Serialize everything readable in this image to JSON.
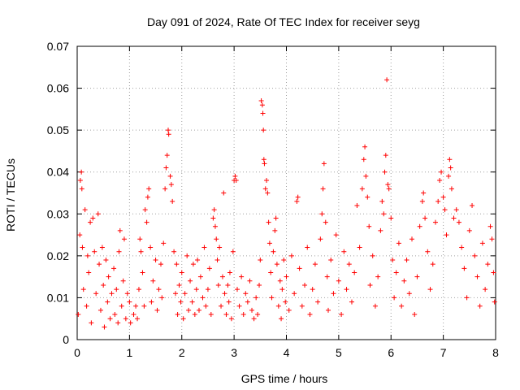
{
  "chart_data": {
    "type": "scatter",
    "title": "Day 091 of 2024, Rate Of TEC Index for receiver seyg",
    "xlabel": "GPS time / hours",
    "ylabel": "ROTI / TECUs",
    "xlim": [
      0,
      8
    ],
    "ylim": [
      0,
      0.07
    ],
    "xticks": [
      0,
      1,
      2,
      3,
      4,
      5,
      6,
      7,
      8
    ],
    "xtick_labels": [
      "0",
      "1",
      "2",
      "3",
      "4",
      "5",
      "6",
      "7",
      "8"
    ],
    "yticks": [
      0,
      0.01,
      0.02,
      0.03,
      0.04,
      0.05,
      0.06,
      0.07
    ],
    "ytick_labels": [
      "0",
      "0.01",
      "0.02",
      "0.03",
      "0.04",
      "0.05",
      "0.06",
      "0.07"
    ],
    "grid": true,
    "marker": "+",
    "color": "#ff0000",
    "series": [
      {
        "name": "ROTI",
        "points": [
          [
            0.02,
            0.006
          ],
          [
            0.05,
            0.025
          ],
          [
            0.06,
            0.038
          ],
          [
            0.08,
            0.04
          ],
          [
            0.09,
            0.036
          ],
          [
            0.1,
            0.022
          ],
          [
            0.12,
            0.012
          ],
          [
            0.15,
            0.031
          ],
          [
            0.18,
            0.008
          ],
          [
            0.2,
            0.02
          ],
          [
            0.22,
            0.016
          ],
          [
            0.25,
            0.028
          ],
          [
            0.27,
            0.004
          ],
          [
            0.3,
            0.029
          ],
          [
            0.33,
            0.021
          ],
          [
            0.36,
            0.011
          ],
          [
            0.4,
            0.03
          ],
          [
            0.42,
            0.018
          ],
          [
            0.45,
            0.007
          ],
          [
            0.48,
            0.022
          ],
          [
            0.5,
            0.013
          ],
          [
            0.52,
            0.003
          ],
          [
            0.55,
            0.019
          ],
          [
            0.58,
            0.009
          ],
          [
            0.6,
            0.015
          ],
          [
            0.63,
            0.005
          ],
          [
            0.66,
            0.011
          ],
          [
            0.7,
            0.017
          ],
          [
            0.72,
            0.006
          ],
          [
            0.75,
            0.012
          ],
          [
            0.78,
            0.004
          ],
          [
            0.8,
            0.021
          ],
          [
            0.82,
            0.026
          ],
          [
            0.85,
            0.008
          ],
          [
            0.88,
            0.014
          ],
          [
            0.9,
            0.024
          ],
          [
            0.93,
            0.005
          ],
          [
            0.96,
            0.011
          ],
          [
            1.0,
            0.009
          ],
          [
            1.02,
            0.004
          ],
          [
            1.08,
            0.006
          ],
          [
            1.12,
            0.008
          ],
          [
            1.15,
            0.005
          ],
          [
            1.18,
            0.012
          ],
          [
            1.2,
            0.024
          ],
          [
            1.22,
            0.021
          ],
          [
            1.25,
            0.016
          ],
          [
            1.28,
            0.008
          ],
          [
            1.3,
            0.031
          ],
          [
            1.33,
            0.028
          ],
          [
            1.35,
            0.034
          ],
          [
            1.37,
            0.036
          ],
          [
            1.4,
            0.022
          ],
          [
            1.42,
            0.009
          ],
          [
            1.45,
            0.014
          ],
          [
            1.5,
            0.019
          ],
          [
            1.53,
            0.007
          ],
          [
            1.56,
            0.012
          ],
          [
            1.6,
            0.018
          ],
          [
            1.62,
            0.01
          ],
          [
            1.65,
            0.023
          ],
          [
            1.68,
            0.036
          ],
          [
            1.7,
            0.041
          ],
          [
            1.72,
            0.044
          ],
          [
            1.74,
            0.05
          ],
          [
            1.75,
            0.049
          ],
          [
            1.78,
            0.039
          ],
          [
            1.8,
            0.037
          ],
          [
            1.82,
            0.033
          ],
          [
            1.85,
            0.021
          ],
          [
            1.88,
            0.011
          ],
          [
            1.9,
            0.018
          ],
          [
            1.92,
            0.006
          ],
          [
            1.95,
            0.013
          ],
          [
            1.98,
            0.009
          ],
          [
            2.0,
            0.016
          ],
          [
            2.03,
            0.005
          ],
          [
            2.06,
            0.011
          ],
          [
            2.1,
            0.02
          ],
          [
            2.13,
            0.007
          ],
          [
            2.16,
            0.014
          ],
          [
            2.2,
            0.009
          ],
          [
            2.22,
            0.018
          ],
          [
            2.25,
            0.006
          ],
          [
            2.28,
            0.012
          ],
          [
            2.3,
            0.019
          ],
          [
            2.33,
            0.007
          ],
          [
            2.36,
            0.015
          ],
          [
            2.4,
            0.01
          ],
          [
            2.43,
            0.022
          ],
          [
            2.46,
            0.008
          ],
          [
            2.5,
            0.012
          ],
          [
            2.53,
            0.017
          ],
          [
            2.56,
            0.006
          ],
          [
            2.6,
            0.029
          ],
          [
            2.62,
            0.031
          ],
          [
            2.64,
            0.027
          ],
          [
            2.66,
            0.024
          ],
          [
            2.68,
            0.019
          ],
          [
            2.7,
            0.013
          ],
          [
            2.72,
            0.022
          ],
          [
            2.75,
            0.008
          ],
          [
            2.78,
            0.015
          ],
          [
            2.8,
            0.035
          ],
          [
            2.82,
            0.011
          ],
          [
            2.85,
            0.006
          ],
          [
            2.88,
            0.013
          ],
          [
            2.9,
            0.009
          ],
          [
            2.92,
            0.016
          ],
          [
            2.95,
            0.005
          ],
          [
            2.98,
            0.021
          ],
          [
            3.0,
            0.038
          ],
          [
            3.02,
            0.039
          ],
          [
            3.04,
            0.038
          ],
          [
            3.06,
            0.012
          ],
          [
            3.1,
            0.008
          ],
          [
            3.14,
            0.015
          ],
          [
            3.18,
            0.006
          ],
          [
            3.22,
            0.011
          ],
          [
            3.26,
            0.009
          ],
          [
            3.3,
            0.014
          ],
          [
            3.34,
            0.007
          ],
          [
            3.38,
            0.005
          ],
          [
            3.42,
            0.01
          ],
          [
            3.45,
            0.006
          ],
          [
            3.48,
            0.013
          ],
          [
            3.5,
            0.019
          ],
          [
            3.52,
            0.057
          ],
          [
            3.54,
            0.056
          ],
          [
            3.55,
            0.054
          ],
          [
            3.56,
            0.05
          ],
          [
            3.57,
            0.043
          ],
          [
            3.58,
            0.042
          ],
          [
            3.6,
            0.036
          ],
          [
            3.62,
            0.038
          ],
          [
            3.64,
            0.035
          ],
          [
            3.66,
            0.028
          ],
          [
            3.68,
            0.023
          ],
          [
            3.7,
            0.016
          ],
          [
            3.72,
            0.01
          ],
          [
            3.75,
            0.021
          ],
          [
            3.78,
            0.026
          ],
          [
            3.8,
            0.029
          ],
          [
            3.82,
            0.018
          ],
          [
            3.85,
            0.008
          ],
          [
            3.88,
            0.014
          ],
          [
            3.9,
            0.005
          ],
          [
            3.92,
            0.012
          ],
          [
            3.95,
            0.019
          ],
          [
            3.98,
            0.009
          ],
          [
            4.0,
            0.015
          ],
          [
            4.05,
            0.007
          ],
          [
            4.1,
            0.02
          ],
          [
            4.15,
            0.011
          ],
          [
            4.2,
            0.033
          ],
          [
            4.22,
            0.034
          ],
          [
            4.25,
            0.017
          ],
          [
            4.3,
            0.008
          ],
          [
            4.35,
            0.013
          ],
          [
            4.4,
            0.022
          ],
          [
            4.45,
            0.006
          ],
          [
            4.5,
            0.012
          ],
          [
            4.55,
            0.018
          ],
          [
            4.6,
            0.009
          ],
          [
            4.65,
            0.024
          ],
          [
            4.68,
            0.03
          ],
          [
            4.7,
            0.036
          ],
          [
            4.72,
            0.042
          ],
          [
            4.75,
            0.028
          ],
          [
            4.78,
            0.015
          ],
          [
            4.8,
            0.007
          ],
          [
            4.85,
            0.019
          ],
          [
            4.9,
            0.011
          ],
          [
            4.95,
            0.025
          ],
          [
            5.0,
            0.014
          ],
          [
            5.05,
            0.006
          ],
          [
            5.1,
            0.021
          ],
          [
            5.15,
            0.012
          ],
          [
            5.2,
            0.018
          ],
          [
            5.25,
            0.009
          ],
          [
            5.3,
            0.016
          ],
          [
            5.35,
            0.032
          ],
          [
            5.4,
            0.022
          ],
          [
            5.45,
            0.036
          ],
          [
            5.48,
            0.043
          ],
          [
            5.5,
            0.046
          ],
          [
            5.52,
            0.039
          ],
          [
            5.55,
            0.034
          ],
          [
            5.58,
            0.027
          ],
          [
            5.6,
            0.013
          ],
          [
            5.65,
            0.02
          ],
          [
            5.7,
            0.008
          ],
          [
            5.75,
            0.015
          ],
          [
            5.8,
            0.026
          ],
          [
            5.83,
            0.033
          ],
          [
            5.86,
            0.03
          ],
          [
            5.88,
            0.04
          ],
          [
            5.9,
            0.044
          ],
          [
            5.92,
            0.062
          ],
          [
            5.94,
            0.037
          ],
          [
            5.96,
            0.036
          ],
          [
            6.0,
            0.029
          ],
          [
            6.03,
            0.019
          ],
          [
            6.06,
            0.01
          ],
          [
            6.1,
            0.016
          ],
          [
            6.15,
            0.023
          ],
          [
            6.2,
            0.008
          ],
          [
            6.25,
            0.014
          ],
          [
            6.3,
            0.019
          ],
          [
            6.35,
            0.011
          ],
          [
            6.4,
            0.024
          ],
          [
            6.45,
            0.006
          ],
          [
            6.5,
            0.015
          ],
          [
            6.55,
            0.027
          ],
          [
            6.6,
            0.033
          ],
          [
            6.62,
            0.035
          ],
          [
            6.65,
            0.029
          ],
          [
            6.7,
            0.021
          ],
          [
            6.75,
            0.012
          ],
          [
            6.8,
            0.018
          ],
          [
            6.85,
            0.028
          ],
          [
            6.9,
            0.033
          ],
          [
            6.93,
            0.038
          ],
          [
            6.96,
            0.04
          ],
          [
            7.0,
            0.034
          ],
          [
            7.03,
            0.031
          ],
          [
            7.06,
            0.025
          ],
          [
            7.1,
            0.039
          ],
          [
            7.12,
            0.043
          ],
          [
            7.14,
            0.041
          ],
          [
            7.16,
            0.036
          ],
          [
            7.2,
            0.029
          ],
          [
            7.25,
            0.031
          ],
          [
            7.3,
            0.028
          ],
          [
            7.35,
            0.022
          ],
          [
            7.4,
            0.017
          ],
          [
            7.45,
            0.01
          ],
          [
            7.5,
            0.026
          ],
          [
            7.55,
            0.032
          ],
          [
            7.6,
            0.02
          ],
          [
            7.65,
            0.015
          ],
          [
            7.7,
            0.008
          ],
          [
            7.75,
            0.023
          ],
          [
            7.8,
            0.012
          ],
          [
            7.85,
            0.018
          ],
          [
            7.9,
            0.027
          ],
          [
            7.93,
            0.024
          ],
          [
            7.96,
            0.016
          ],
          [
            7.98,
            0.009
          ]
        ]
      }
    ]
  }
}
